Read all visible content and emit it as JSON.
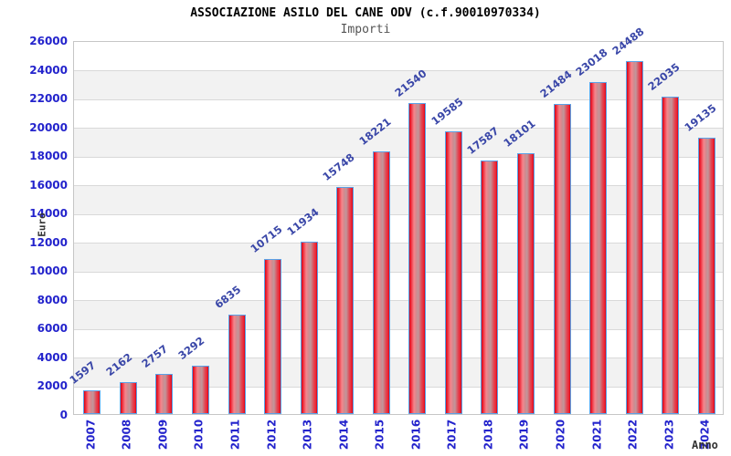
{
  "chart_data": {
    "type": "bar",
    "title": "ASSOCIAZIONE ASILO DEL CANE ODV (c.f.90010970334)",
    "subtitle": "Importi",
    "xlabel": "Anno",
    "ylabel": "Euro",
    "categories": [
      "2007",
      "2008",
      "2009",
      "2010",
      "2011",
      "2012",
      "2013",
      "2014",
      "2015",
      "2016",
      "2017",
      "2018",
      "2019",
      "2020",
      "2021",
      "2022",
      "2023",
      "2024"
    ],
    "values": [
      1597,
      2162,
      2757,
      3292,
      6835,
      10715,
      11934,
      15748,
      18221,
      21540,
      19585,
      17587,
      18101,
      21484,
      23018,
      24488,
      22035,
      19135
    ],
    "ylim": [
      0,
      26000
    ],
    "ytick_step": 2000,
    "grid": "horizontal",
    "background_bands": "alternating",
    "legend": "none",
    "colors": {
      "bar_fill": "#e0101f",
      "bar_fill_center": "#cc8b90",
      "bar_border": "#5aa2e8",
      "tick_label": "#2323cc",
      "value_label": "#3a47a8",
      "axis_title": "#333333",
      "title": "#000000",
      "subtitle": "#555555",
      "band": "#f2f2f2",
      "gridline": "#d9d9d9",
      "plot_border": "#c6c6c6"
    }
  }
}
